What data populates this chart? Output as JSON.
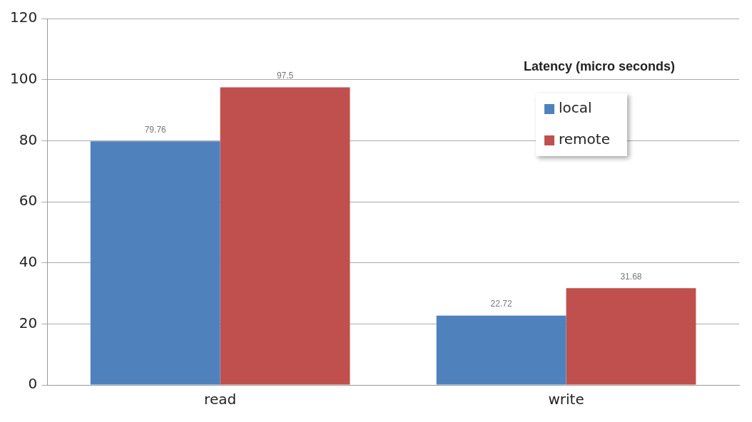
{
  "chart_data": {
    "type": "bar",
    "title": "Latency (micro seconds)",
    "categories": [
      "read",
      "write"
    ],
    "series": [
      {
        "name": "local",
        "color": "#4f81bd",
        "values": [
          79.76,
          22.72
        ]
      },
      {
        "name": "remote",
        "color": "#c0504d",
        "values": [
          97.5,
          31.68
        ]
      }
    ],
    "ylim": [
      0,
      120
    ],
    "yticks": [
      0,
      20,
      40,
      60,
      80,
      100,
      120
    ],
    "grid": "y",
    "legend": "top right",
    "data_labels": true
  }
}
